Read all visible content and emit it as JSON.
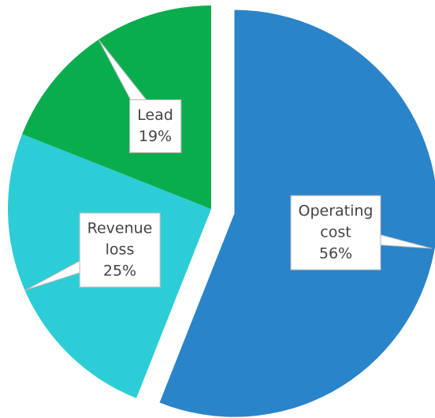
{
  "chart_data": {
    "type": "pie",
    "categories": [
      "Operating cost",
      "Revenue loss",
      "Lead"
    ],
    "values": [
      56,
      25,
      19
    ],
    "value_labels": [
      "56%",
      "25%",
      "19%"
    ],
    "colors": [
      "#2a84c9",
      "#2ccdd6",
      "#0aad4e"
    ],
    "exploded": [
      true,
      false,
      false
    ]
  }
}
